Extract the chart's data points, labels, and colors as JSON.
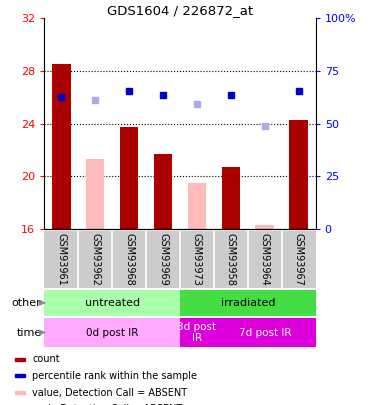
{
  "title": "GDS1604 / 226872_at",
  "samples": [
    "GSM93961",
    "GSM93962",
    "GSM93968",
    "GSM93969",
    "GSM93973",
    "GSM93958",
    "GSM93964",
    "GSM93967"
  ],
  "bar_values": [
    28.5,
    21.3,
    23.7,
    21.7,
    19.5,
    20.7,
    16.3,
    24.3
  ],
  "bar_colors": [
    "#aa0000",
    "#ffbbbb",
    "#aa0000",
    "#aa0000",
    "#ffbbbb",
    "#aa0000",
    "#ffbbbb",
    "#aa0000"
  ],
  "rank_present": [
    26.0,
    null,
    26.5,
    26.2,
    null,
    26.2,
    null,
    26.5
  ],
  "rank_absent": [
    null,
    25.8,
    null,
    null,
    25.5,
    null,
    23.8,
    null
  ],
  "ylim_left": [
    16,
    32
  ],
  "ylim_right": [
    0,
    100
  ],
  "yticks_left": [
    16,
    20,
    24,
    28,
    32
  ],
  "ytick_labels_left": [
    "16",
    "20",
    "24",
    "28",
    "32"
  ],
  "yticks_right_pct": [
    0,
    25,
    50,
    75,
    100
  ],
  "ytick_labels_right": [
    "0",
    "25",
    "50",
    "75",
    "100%"
  ],
  "groups_other": [
    {
      "label": "untreated",
      "start": 0,
      "end": 4,
      "color": "#aaffaa"
    },
    {
      "label": "irradiated",
      "start": 4,
      "end": 8,
      "color": "#44dd44"
    }
  ],
  "groups_time": [
    {
      "label": "0d post IR",
      "start": 0,
      "end": 4,
      "color": "#ffaaff"
    },
    {
      "label": "3d post\nIR",
      "start": 4,
      "end": 5,
      "color": "#dd00dd"
    },
    {
      "label": "7d post IR",
      "start": 5,
      "end": 8,
      "color": "#dd00dd"
    }
  ],
  "legend_items": [
    {
      "color": "#aa0000",
      "marker": "s",
      "label": "count"
    },
    {
      "color": "#0000bb",
      "marker": "s",
      "label": "percentile rank within the sample"
    },
    {
      "color": "#ffbbbb",
      "marker": "s",
      "label": "value, Detection Call = ABSENT"
    },
    {
      "color": "#bbbbff",
      "marker": "s",
      "label": "rank, Detection Call = ABSENT"
    }
  ],
  "other_label": "other",
  "time_label": "time"
}
